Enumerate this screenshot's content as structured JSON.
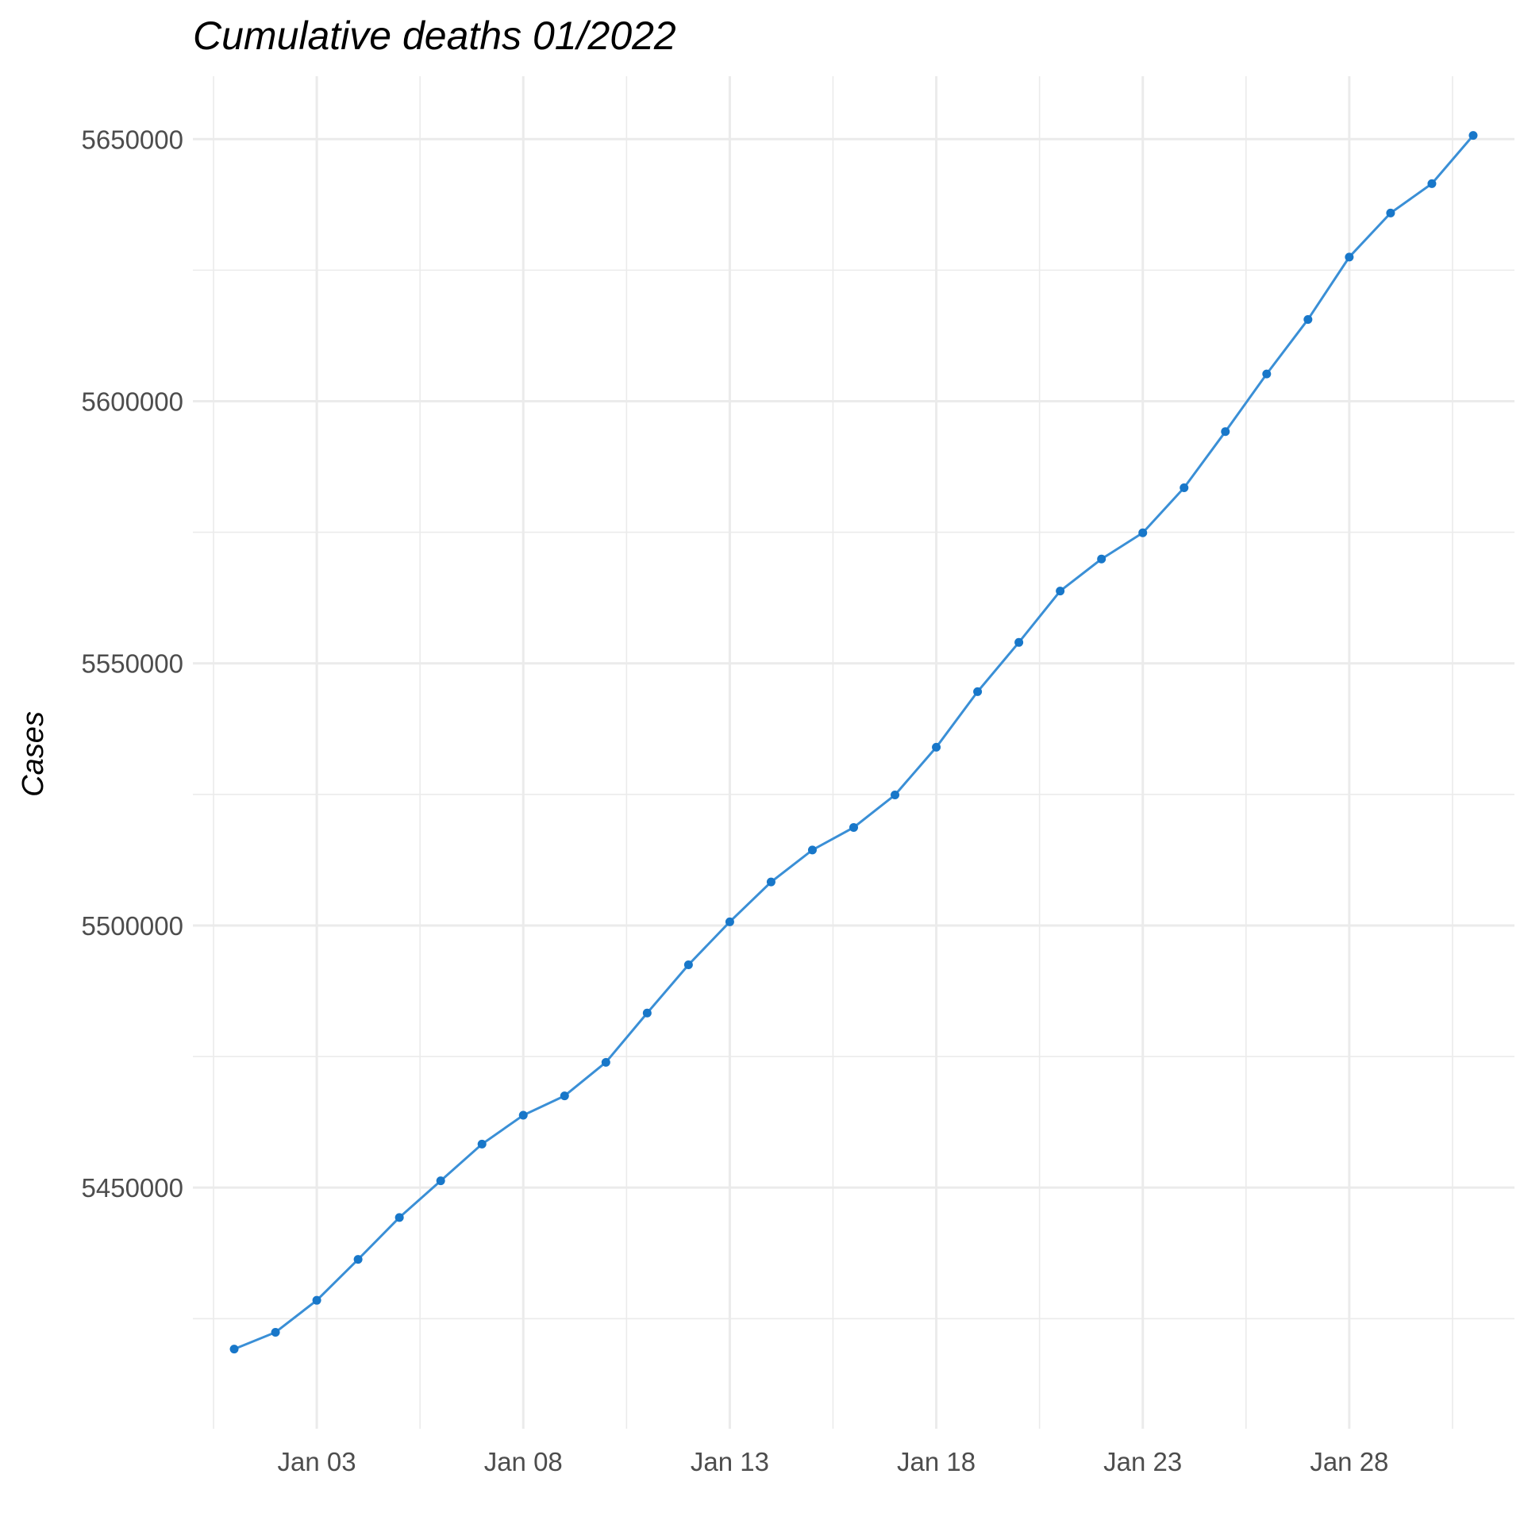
{
  "chart_data": {
    "type": "line",
    "title": "Cumulative deaths 01/2022",
    "xlabel": "",
    "ylabel": "Cases",
    "grid": true,
    "legend": "none",
    "line_color": "#3a8fd6",
    "point_color": "#1877c9",
    "x_tick_labels": [
      "Jan 03",
      "Jan 08",
      "Jan 13",
      "Jan 18",
      "Jan 23",
      "Jan 28"
    ],
    "y_tick_labels": [
      "5450000",
      "5500000",
      "5550000",
      "5600000",
      "5650000"
    ],
    "ylim": [
      5404000,
      5662000
    ],
    "xlim": [
      "2021-12-31",
      "2022-02-01"
    ],
    "series": [
      {
        "x": [
          "2022-01-01",
          "2022-01-02",
          "2022-01-03",
          "2022-01-04",
          "2022-01-05",
          "2022-01-06",
          "2022-01-07",
          "2022-01-08",
          "2022-01-09",
          "2022-01-10",
          "2022-01-11",
          "2022-01-12",
          "2022-01-13",
          "2022-01-14",
          "2022-01-15",
          "2022-01-16",
          "2022-01-17",
          "2022-01-18",
          "2022-01-19",
          "2022-01-20",
          "2022-01-21",
          "2022-01-22",
          "2022-01-23",
          "2022-01-24",
          "2022-01-25",
          "2022-01-26",
          "2022-01-27",
          "2022-01-28",
          "2022-01-29",
          "2022-01-30",
          "2022-01-31"
        ],
        "values": [
          5419200,
          5422400,
          5428500,
          5436300,
          5444300,
          5451300,
          5458300,
          5463800,
          5467500,
          5473900,
          5483300,
          5492500,
          5500700,
          5508300,
          5514400,
          5518700,
          5524900,
          5534000,
          5544600,
          5554000,
          5563800,
          5569900,
          5574900,
          5583500,
          5594200,
          5605200,
          5615600,
          5627500,
          5635900,
          5641500,
          5650700
        ]
      }
    ]
  }
}
